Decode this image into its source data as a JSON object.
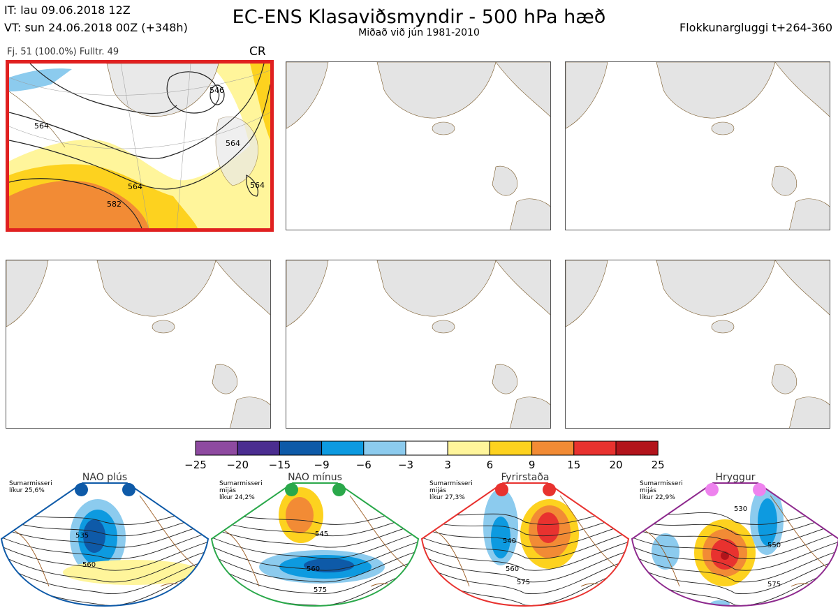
{
  "header": {
    "it": "IT: lau 09.06.2018 12Z",
    "vt": "VT: sun 24.06.2018 00Z  (+348h)",
    "title": "EC-ENS Klasaviðsmyndir - 500 hPa hæð",
    "subtitle": "Miðað við jún 1981-2010",
    "window": "Flokkunargluggi t+264-360"
  },
  "panel1": {
    "fj": "Fj. 51 (100.0%)   Fulltr. 49",
    "cluster": "CR",
    "contour_labels": [
      "546",
      "564",
      "564",
      "564",
      "564",
      "582"
    ]
  },
  "colorbar": {
    "ticks": [
      "−25",
      "−20",
      "−15",
      "−9",
      "−6",
      "−3",
      "3",
      "6",
      "9",
      "15",
      "20",
      "25"
    ],
    "colors": [
      "#8e4aa0",
      "#4b2d90",
      "#0e5aa8",
      "#0d9ae0",
      "#8ccbee",
      "#ffffff",
      "#fff59b",
      "#fdd21f",
      "#f28b35",
      "#e8322f",
      "#b2141b"
    ]
  },
  "regimes": [
    {
      "name": "NAO plús",
      "desc": [
        "Sumarmisseri",
        "líkur 25,6%"
      ],
      "color": "#0e5aa8",
      "dot": "#0e5aa8",
      "labels": [
        "535",
        "560"
      ]
    },
    {
      "name": "NAO mínus",
      "desc": [
        "Sumarmisseri",
        "mijás",
        "líkur 24,2%"
      ],
      "color": "#2aa84a",
      "dot": "#2aa84a",
      "labels": [
        "545",
        "560",
        "575"
      ]
    },
    {
      "name": "Fyrirstaða",
      "desc": [
        "Sumarmisseri",
        "mijás",
        "líkur 27,3%"
      ],
      "color": "#e8322f",
      "dot": "#e8322f",
      "labels": [
        "540",
        "560",
        "575"
      ]
    },
    {
      "name": "Hryggur",
      "desc": [
        "Sumarmisseri",
        "mijás",
        "líkur 22,9%"
      ],
      "color": "#8e2a8e",
      "dot": "#ee82ee",
      "labels": [
        "530",
        "550",
        "575"
      ]
    }
  ]
}
